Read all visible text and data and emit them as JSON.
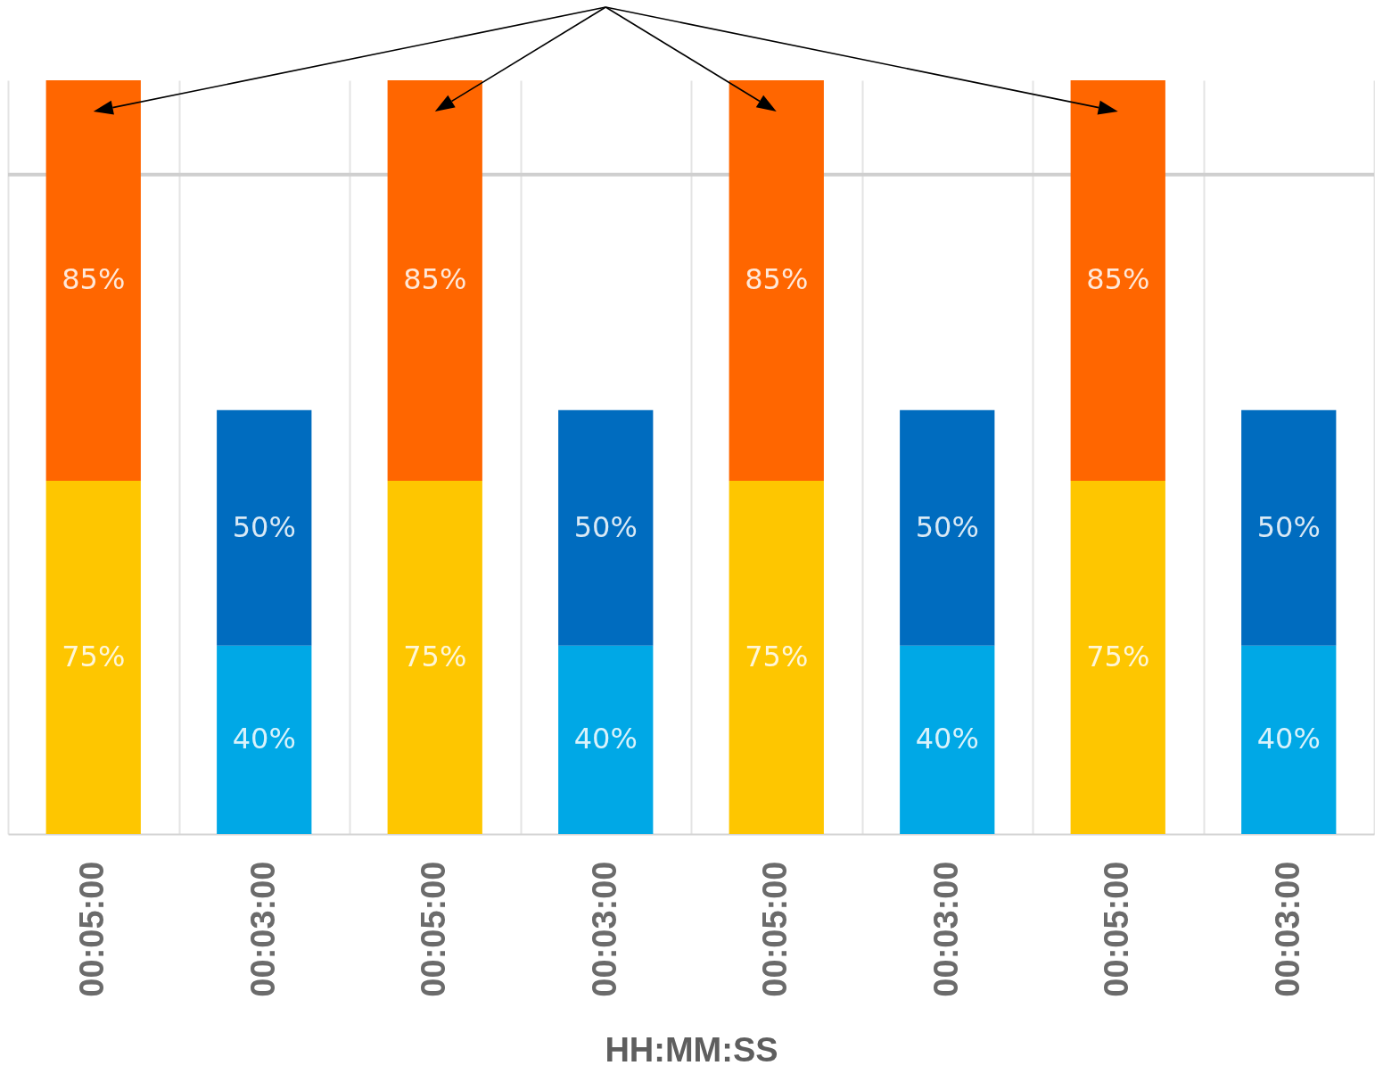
{
  "chart_data": {
    "type": "bar",
    "stacked": true,
    "xlabel": "HH:MM:SS",
    "grid": "x",
    "categories": [
      "00:05:00",
      "00:03:00",
      "00:05:00",
      "00:03:00",
      "00:05:00",
      "00:03:00",
      "00:05:00",
      "00:03:00"
    ],
    "series": [
      {
        "color": "#fec600",
        "values": [
          75,
          null,
          75,
          null,
          75,
          null,
          75,
          null
        ],
        "value_labels": [
          "75%",
          null,
          "75%",
          null,
          "75%",
          null,
          "75%",
          null
        ]
      },
      {
        "color": "#ff6600",
        "values": [
          85,
          null,
          85,
          null,
          85,
          null,
          85,
          null
        ],
        "value_labels": [
          "85%",
          null,
          "85%",
          null,
          "85%",
          null,
          "85%",
          null
        ]
      },
      {
        "color": "#00a8e6",
        "values": [
          null,
          40,
          null,
          40,
          null,
          40,
          null,
          40
        ],
        "value_labels": [
          null,
          "40%",
          null,
          "40%",
          null,
          "40%",
          null,
          "40%"
        ]
      },
      {
        "color": "#006cbf",
        "values": [
          null,
          50,
          null,
          50,
          null,
          50,
          null,
          50
        ],
        "value_labels": [
          null,
          "50%",
          null,
          "50%",
          null,
          "50%",
          null,
          "50%"
        ]
      }
    ],
    "ref_lines": [
      {
        "axis": "y",
        "value": 140,
        "color": "#cfcfcf"
      }
    ]
  }
}
